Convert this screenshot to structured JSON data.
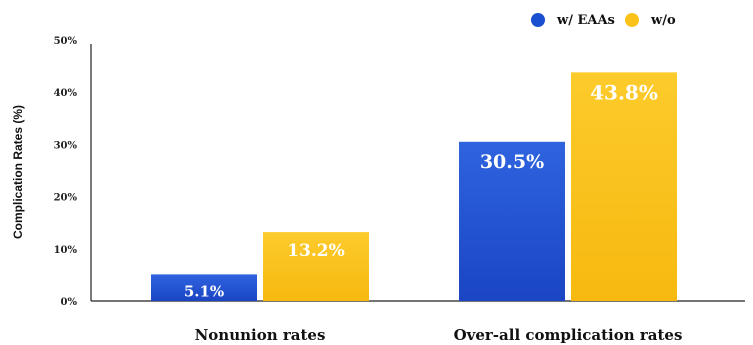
{
  "chart_data": {
    "type": "bar",
    "ylabel": "Complication Rates (%)",
    "xlabel": "",
    "ylim": [
      0,
      50
    ],
    "y_ticks": [
      {
        "value": 0,
        "label": "0%"
      },
      {
        "value": 10,
        "label": "10%"
      },
      {
        "value": 20,
        "label": "20%"
      },
      {
        "value": 30,
        "label": "30%"
      },
      {
        "value": 40,
        "label": "40%"
      },
      {
        "value": 50,
        "label": "50%"
      }
    ],
    "categories": [
      "Nonunion rates",
      "Over-all complication rates"
    ],
    "series": [
      {
        "name": "w/ EAAs",
        "color": "#1a4fd1",
        "values": [
          5.1,
          30.5
        ],
        "data_labels": [
          "5.1%",
          "30.5%"
        ]
      },
      {
        "name": "w/o",
        "color": "#fbc21a",
        "values": [
          13.2,
          43.8
        ],
        "data_labels": [
          "13.2%",
          "43.8%"
        ]
      }
    ],
    "legend_position": "top-right",
    "grid": false
  }
}
